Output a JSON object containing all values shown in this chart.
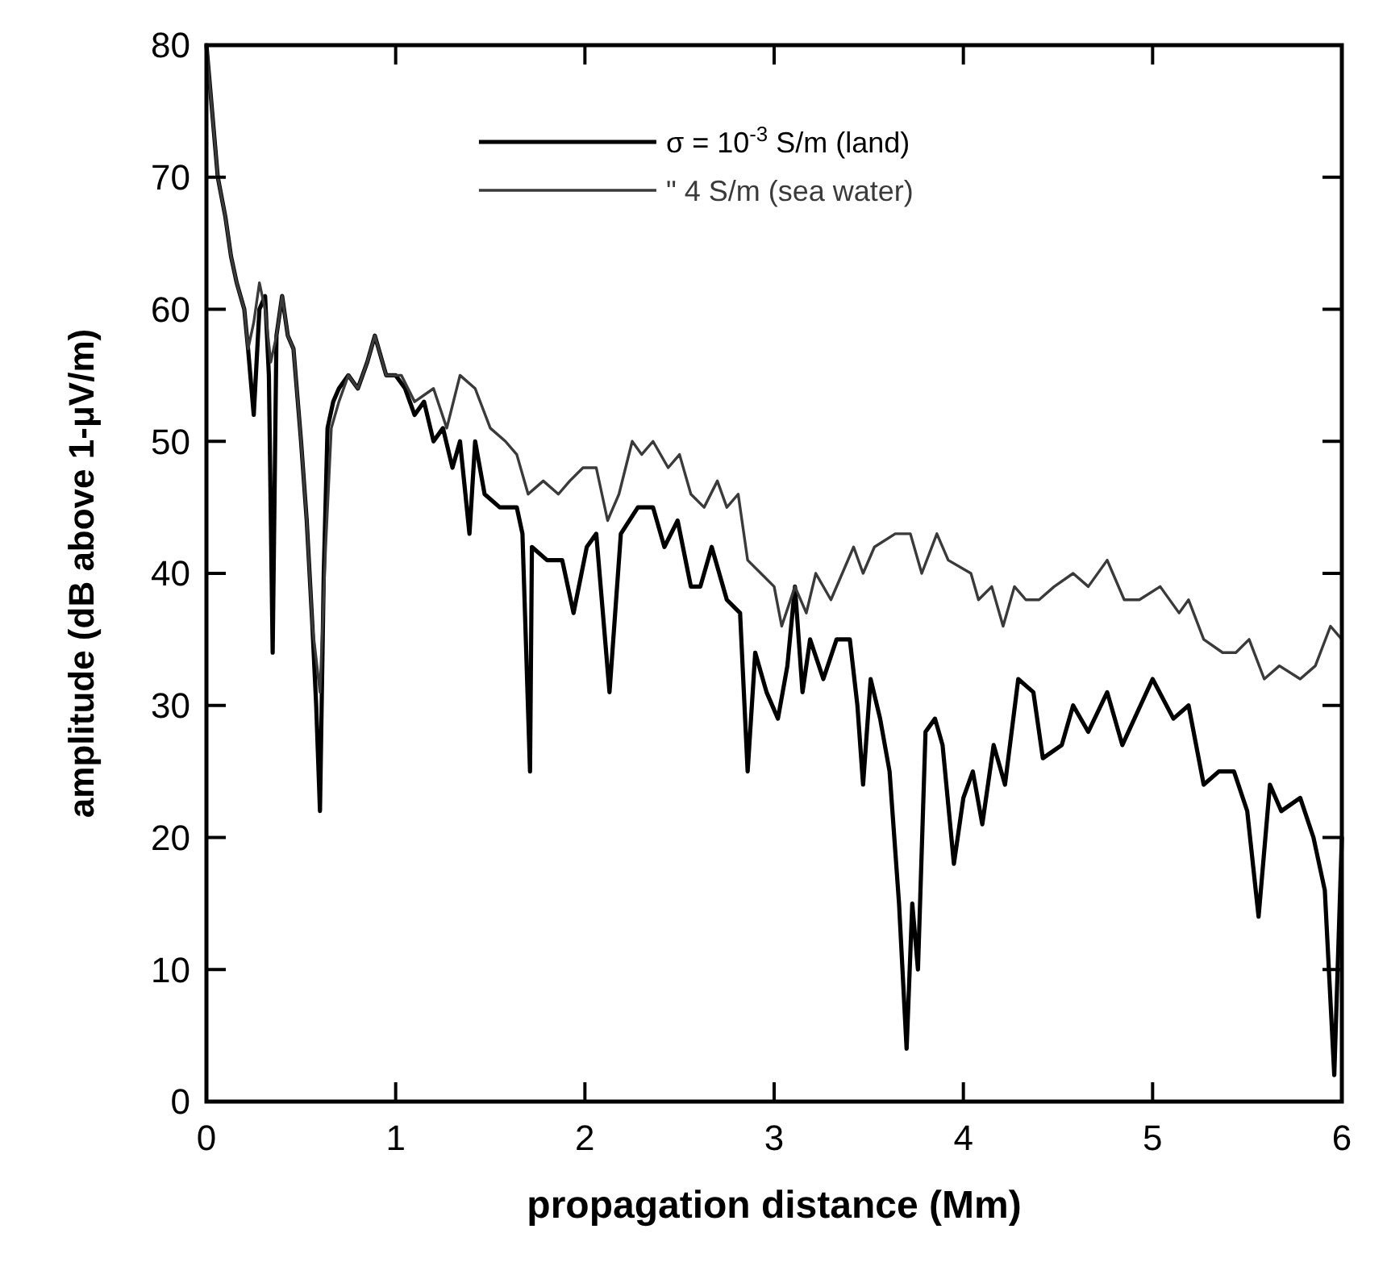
{
  "chart_data": {
    "type": "line",
    "xlabel": "propagation distance (Mm)",
    "ylabel": "amplitude   (dB above 1-μV/m)",
    "xlim": [
      0,
      6
    ],
    "ylim": [
      0,
      80
    ],
    "xticks": [
      0,
      1,
      2,
      3,
      4,
      5,
      6
    ],
    "yticks": [
      0,
      10,
      20,
      30,
      40,
      50,
      60,
      70,
      80
    ],
    "legend": "top right",
    "grid": false,
    "marker": "none",
    "line_style": "solid",
    "series": [
      {
        "name": "σ = 10$^{-3}$ S/m  (land)",
        "color": "#000000",
        "x": [
          0,
          0.03,
          0.06,
          0.1,
          0.13,
          0.16,
          0.2,
          0.22,
          0.25,
          0.28,
          0.31,
          0.33,
          0.35,
          0.37,
          0.4,
          0.43,
          0.46,
          0.5,
          0.53,
          0.56,
          0.58,
          0.6,
          0.62,
          0.64,
          0.67,
          0.7,
          0.75,
          0.8,
          0.85,
          0.89,
          0.95,
          1.0,
          1.05,
          1.1,
          1.15,
          1.2,
          1.25,
          1.3,
          1.34,
          1.39,
          1.42,
          1.47,
          1.55,
          1.64,
          1.67,
          1.71,
          1.72,
          1.8,
          1.88,
          1.94,
          2.01,
          2.06,
          2.13,
          2.19,
          2.28,
          2.36,
          2.42,
          2.49,
          2.56,
          2.61,
          2.67,
          2.75,
          2.82,
          2.86,
          2.9,
          2.96,
          3.02,
          3.07,
          3.11,
          3.15,
          3.19,
          3.26,
          3.33,
          3.4,
          3.44,
          3.47,
          3.51,
          3.56,
          3.61,
          3.66,
          3.7,
          3.73,
          3.76,
          3.8,
          3.85,
          3.89,
          3.95,
          4.0,
          4.05,
          4.1,
          4.16,
          4.22,
          4.29,
          4.37,
          4.42,
          4.52,
          4.58,
          4.66,
          4.76,
          4.84,
          5.0,
          5.11,
          5.19,
          5.27,
          5.35,
          5.43,
          5.5,
          5.56,
          5.62,
          5.68,
          5.78,
          5.85,
          5.91,
          5.96,
          6.0
        ],
        "values": [
          80,
          75,
          70,
          67,
          64,
          62,
          60,
          57,
          52,
          60,
          61,
          55,
          34,
          58,
          61,
          58,
          57,
          50,
          44,
          36,
          30,
          22,
          40,
          51,
          53,
          54,
          55,
          54,
          56,
          58,
          55,
          55,
          54,
          52,
          53,
          50,
          51,
          48,
          50,
          43,
          50,
          46,
          45,
          45,
          43,
          25,
          42,
          41,
          41,
          37,
          42,
          43,
          31,
          43,
          45,
          45,
          42,
          44,
          39,
          39,
          42,
          38,
          37,
          25,
          34,
          31,
          29,
          33,
          39,
          31,
          35,
          32,
          35,
          35,
          30,
          24,
          32,
          29,
          25,
          15,
          4,
          15,
          10,
          28,
          29,
          27,
          18,
          23,
          25,
          21,
          27,
          24,
          32,
          31,
          26,
          27,
          30,
          28,
          31,
          27,
          32,
          29,
          30,
          24,
          25,
          25,
          22,
          14,
          24,
          22,
          23,
          20,
          16,
          2,
          20
        ]
      },
      {
        "name": "\"  4 S/m  (sea water)",
        "color": "#3a3a3a",
        "x": [
          0,
          0.03,
          0.06,
          0.1,
          0.13,
          0.16,
          0.2,
          0.22,
          0.25,
          0.28,
          0.31,
          0.34,
          0.37,
          0.4,
          0.43,
          0.46,
          0.5,
          0.53,
          0.56,
          0.6,
          0.63,
          0.66,
          0.7,
          0.75,
          0.8,
          0.85,
          0.89,
          0.95,
          1.03,
          1.1,
          1.2,
          1.27,
          1.34,
          1.42,
          1.5,
          1.58,
          1.64,
          1.7,
          1.78,
          1.86,
          1.92,
          1.99,
          2.06,
          2.12,
          2.18,
          2.25,
          2.3,
          2.36,
          2.44,
          2.5,
          2.56,
          2.63,
          2.7,
          2.75,
          2.81,
          2.86,
          2.93,
          3.0,
          3.04,
          3.11,
          3.17,
          3.22,
          3.3,
          3.36,
          3.42,
          3.47,
          3.53,
          3.64,
          3.72,
          3.78,
          3.86,
          3.92,
          4.04,
          4.08,
          4.15,
          4.21,
          4.27,
          4.33,
          4.4,
          4.48,
          4.58,
          4.66,
          4.76,
          4.85,
          4.93,
          5.04,
          5.14,
          5.19,
          5.27,
          5.37,
          5.44,
          5.51,
          5.59,
          5.67,
          5.78,
          5.86,
          5.94,
          6.0
        ],
        "values": [
          80,
          75,
          70,
          67,
          64,
          62,
          60,
          57,
          59,
          62,
          60,
          56,
          58,
          61,
          58,
          57,
          50,
          44,
          36,
          31,
          42,
          51,
          53,
          55,
          54,
          56,
          58,
          55,
          55,
          53,
          54,
          51,
          55,
          54,
          51,
          50,
          49,
          46,
          47,
          46,
          47,
          48,
          48,
          44,
          46,
          50,
          49,
          50,
          48,
          49,
          46,
          45,
          47,
          45,
          46,
          41,
          40,
          39,
          36,
          39,
          37,
          40,
          38,
          40,
          42,
          40,
          42,
          43,
          43,
          40,
          43,
          41,
          40,
          38,
          39,
          36,
          39,
          38,
          38,
          39,
          40,
          39,
          41,
          38,
          38,
          39,
          37,
          38,
          35,
          34,
          34,
          35,
          32,
          33,
          32,
          33,
          36,
          35
        ]
      }
    ]
  }
}
